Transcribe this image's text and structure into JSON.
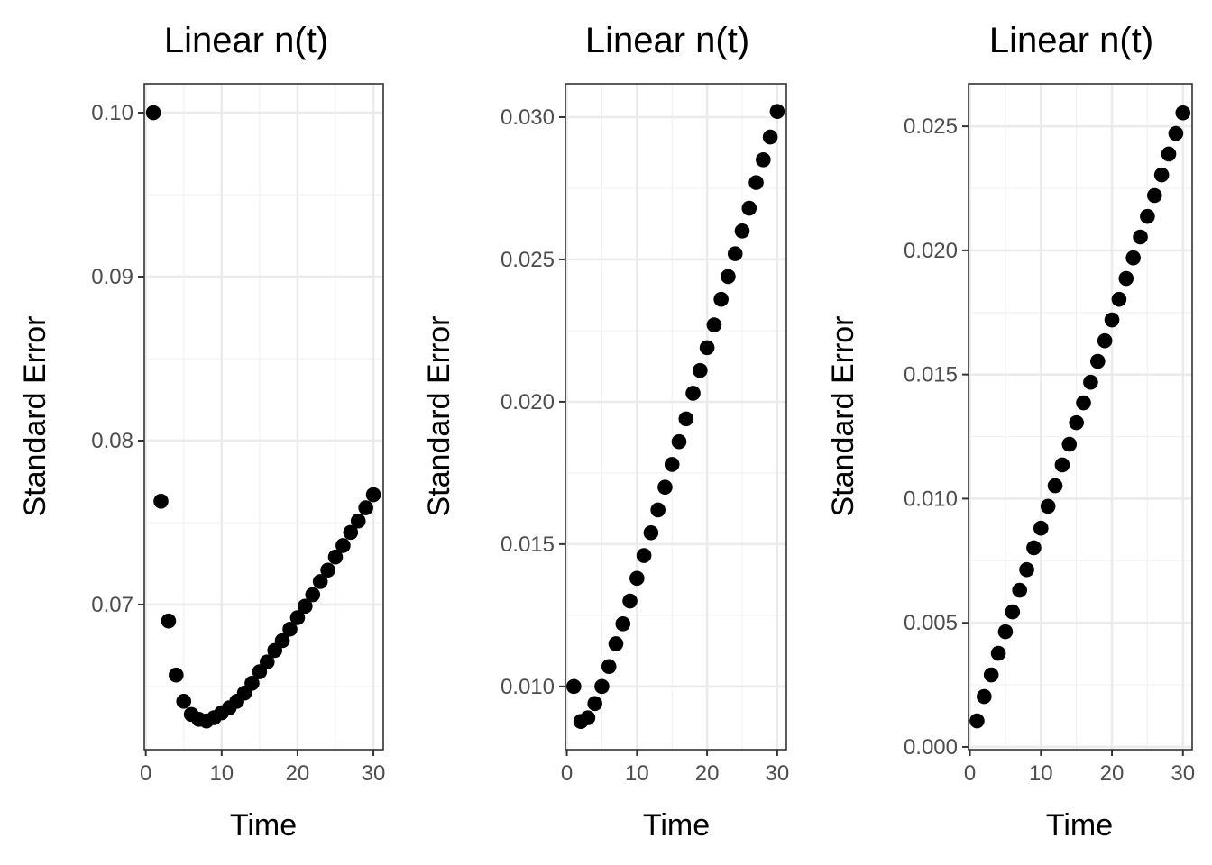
{
  "chart_data": [
    {
      "type": "scatter",
      "title": "Linear n(t)",
      "xlabel": "Time",
      "ylabel": "Standard Error",
      "xlim": [
        -0.2,
        31.3
      ],
      "ylim": [
        0.06115,
        0.10176
      ],
      "xticks": [
        0,
        10,
        20,
        30
      ],
      "xtick_labels": [
        "0",
        "10",
        "20",
        "30"
      ],
      "yticks": [
        0.07,
        0.08,
        0.09,
        0.1
      ],
      "ytick_labels": [
        "0.07",
        "0.08",
        "0.09",
        "0.10"
      ],
      "grid": true,
      "x": [
        1,
        2,
        3,
        4,
        5,
        6,
        7,
        8,
        9,
        10,
        11,
        12,
        13,
        14,
        15,
        16,
        17,
        18,
        19,
        20,
        21,
        22,
        23,
        24,
        25,
        26,
        27,
        28,
        29,
        30
      ],
      "y": [
        0.1,
        0.0763,
        0.069,
        0.0657,
        0.0641,
        0.0633,
        0.063,
        0.0629,
        0.0631,
        0.0634,
        0.0637,
        0.0641,
        0.0646,
        0.0652,
        0.0659,
        0.0665,
        0.0672,
        0.0678,
        0.0685,
        0.0692,
        0.0699,
        0.0706,
        0.0714,
        0.0721,
        0.0729,
        0.0736,
        0.0744,
        0.0751,
        0.0759,
        0.0767
      ]
    },
    {
      "type": "scatter",
      "title": "Linear n(t)",
      "xlabel": "Time",
      "ylabel": "Standard Error",
      "xlim": [
        -0.2,
        31.3
      ],
      "ylim": [
        0.00778,
        0.03117
      ],
      "xticks": [
        0,
        10,
        20,
        30
      ],
      "xtick_labels": [
        "0",
        "10",
        "20",
        "30"
      ],
      "yticks": [
        0.01,
        0.015,
        0.02,
        0.025,
        0.03
      ],
      "ytick_labels": [
        "0.010",
        "0.015",
        "0.020",
        "0.025",
        "0.030"
      ],
      "grid": true,
      "x": [
        1,
        2,
        3,
        4,
        5,
        6,
        7,
        8,
        9,
        10,
        11,
        12,
        13,
        14,
        15,
        16,
        17,
        18,
        19,
        20,
        21,
        22,
        23,
        24,
        25,
        26,
        27,
        28,
        29,
        30
      ],
      "y": [
        0.01,
        0.00877,
        0.0089,
        0.0094,
        0.01,
        0.0107,
        0.0115,
        0.0122,
        0.013,
        0.0138,
        0.0146,
        0.0154,
        0.0162,
        0.017,
        0.0178,
        0.0186,
        0.0194,
        0.0203,
        0.0211,
        0.0219,
        0.0227,
        0.0236,
        0.0244,
        0.0252,
        0.026,
        0.0268,
        0.0277,
        0.0285,
        0.0293,
        0.0302
      ]
    },
    {
      "type": "scatter",
      "title": "Linear n(t)",
      "xlabel": "Time",
      "ylabel": "Standard Error",
      "xlim": [
        -0.2,
        31.3
      ],
      "ylim": [
        -0.00011,
        0.02671
      ],
      "xticks": [
        0,
        10,
        20,
        30
      ],
      "xtick_labels": [
        "0",
        "10",
        "20",
        "30"
      ],
      "yticks": [
        0.0,
        0.005,
        0.01,
        0.015,
        0.02,
        0.025
      ],
      "ytick_labels": [
        "0.000",
        "0.005",
        "0.010",
        "0.015",
        "0.020",
        "0.025"
      ],
      "grid": true,
      "x": [
        1,
        2,
        3,
        4,
        5,
        6,
        7,
        8,
        9,
        10,
        11,
        12,
        13,
        14,
        15,
        16,
        17,
        18,
        19,
        20,
        21,
        22,
        23,
        24,
        25,
        26,
        27,
        28,
        29,
        30
      ],
      "y": [
        0.00105,
        0.00203,
        0.0029,
        0.00377,
        0.00464,
        0.00544,
        0.00631,
        0.00714,
        0.00802,
        0.00881,
        0.00969,
        0.01052,
        0.01136,
        0.01219,
        0.01306,
        0.01386,
        0.01469,
        0.01553,
        0.01636,
        0.0172,
        0.01803,
        0.01887,
        0.0197,
        0.02054,
        0.02137,
        0.02221,
        0.02304,
        0.02388,
        0.02471,
        0.02554
      ]
    }
  ]
}
